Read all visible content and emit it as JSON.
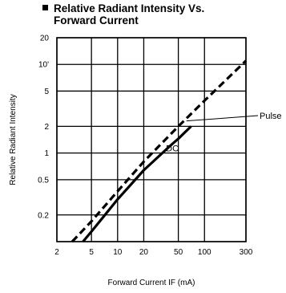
{
  "chart_data": {
    "type": "line",
    "title_line1": "Relative Radiant Intensity Vs.",
    "title_line2": "Forward Current",
    "xlabel": "Forward Current IF (mA)",
    "ylabel": "Relative Radiant Intensity",
    "x_scale": "log",
    "y_scale": "log",
    "xlim": [
      2,
      300
    ],
    "ylim": [
      0.1,
      20
    ],
    "x_ticks": [
      {
        "value": 2,
        "label": "2"
      },
      {
        "value": 5,
        "label": "5"
      },
      {
        "value": 10,
        "label": "10"
      },
      {
        "value": 20,
        "label": "20"
      },
      {
        "value": 50,
        "label": "50"
      },
      {
        "value": 100,
        "label": "100"
      },
      {
        "value": 300,
        "label": "300"
      }
    ],
    "y_ticks": [
      {
        "value": 0.2,
        "label": "0.2"
      },
      {
        "value": 0.5,
        "label": "0.5"
      },
      {
        "value": 1,
        "label": "1"
      },
      {
        "value": 2,
        "label": "2"
      },
      {
        "value": 5,
        "label": "5"
      },
      {
        "value": 10,
        "label": "10'"
      },
      {
        "value": 20,
        "label": "20"
      }
    ],
    "x_gridlines": [
      2,
      5,
      10,
      20,
      50,
      100,
      300
    ],
    "y_gridlines": [
      0.1,
      0.2,
      0.5,
      1,
      2,
      5,
      10,
      20
    ],
    "grid": true,
    "series": [
      {
        "name": "Pulse",
        "style": "dashed",
        "x": [
          3,
          5,
          10,
          20,
          50,
          100,
          300
        ],
        "y": [
          0.1,
          0.17,
          0.37,
          0.8,
          2.0,
          3.9,
          11
        ]
      },
      {
        "name": "DC",
        "style": "solid",
        "x": [
          4,
          5,
          10,
          20,
          40,
          50,
          70
        ],
        "y": [
          0.1,
          0.13,
          0.3,
          0.64,
          1.2,
          1.45,
          2.0
        ]
      }
    ],
    "annotations": {
      "pulse_label": "Pulse",
      "dc_label": "DC"
    }
  }
}
